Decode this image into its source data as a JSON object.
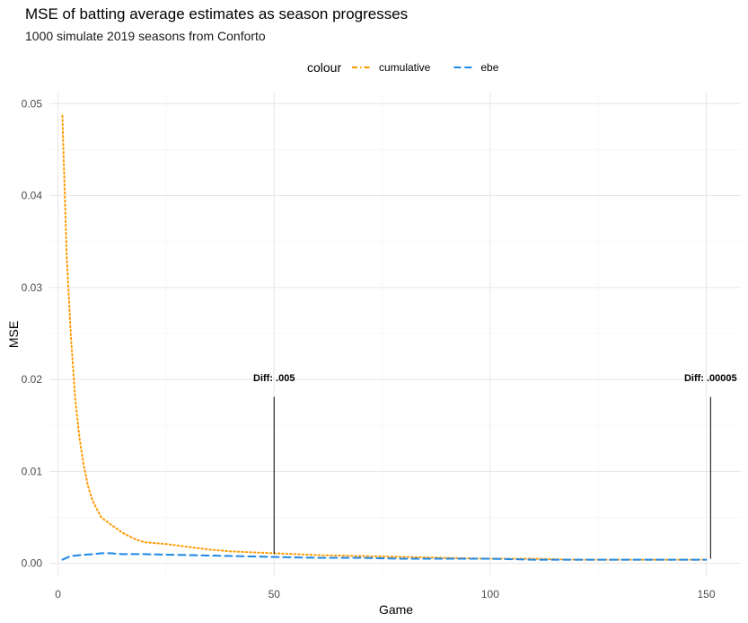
{
  "chart_data": {
    "type": "line",
    "title": "MSE of batting average estimates as season progresses",
    "subtitle": "1000 simulate 2019 seasons from Conforto",
    "xlabel": "Game",
    "ylabel": "MSE",
    "xlim": [
      -2,
      158
    ],
    "ylim": [
      -0.0015,
      0.0512
    ],
    "x_ticks": [
      0,
      50,
      100,
      150
    ],
    "y_ticks": [
      0.0,
      0.01,
      0.02,
      0.03,
      0.04,
      0.05
    ],
    "x_tick_labels": [
      "0",
      "50",
      "100",
      "150"
    ],
    "y_tick_labels": [
      "0.00",
      "0.01",
      "0.02",
      "0.03",
      "0.04",
      "0.05"
    ],
    "grid": true,
    "legend": {
      "title": "colour",
      "position": "top"
    },
    "series": [
      {
        "name": "cumulative",
        "color": "#ff9900",
        "linetype": "dotted",
        "x": [
          1,
          2,
          3,
          4,
          5,
          6,
          7,
          8,
          10,
          12,
          15,
          18,
          20,
          25,
          30,
          35,
          40,
          45,
          50,
          60,
          70,
          80,
          90,
          100,
          110,
          120,
          130,
          140,
          150
        ],
        "y": [
          0.0487,
          0.0335,
          0.0245,
          0.0178,
          0.0135,
          0.0105,
          0.0083,
          0.0068,
          0.005,
          0.0043,
          0.0033,
          0.0026,
          0.0023,
          0.0021,
          0.0018,
          0.0015,
          0.0013,
          0.0012,
          0.0011,
          0.0009,
          0.0008,
          0.0007,
          0.0006,
          0.0005,
          0.0005,
          0.0004,
          0.0004,
          0.0004,
          0.0004
        ]
      },
      {
        "name": "ebe",
        "color": "#1e88e5",
        "linetype": "dashed",
        "x": [
          1,
          3,
          5,
          8,
          10,
          12,
          15,
          20,
          30,
          40,
          50,
          60,
          70,
          80,
          90,
          100,
          110,
          120,
          130,
          140,
          150
        ],
        "y": [
          0.0004,
          0.0008,
          0.0009,
          0.001,
          0.0011,
          0.0011,
          0.001,
          0.001,
          0.0009,
          0.0008,
          0.0007,
          0.0006,
          0.0006,
          0.0005,
          0.0005,
          0.0005,
          0.0004,
          0.0004,
          0.0004,
          0.0004,
          0.0004
        ]
      }
    ],
    "annotations": [
      {
        "x": 50,
        "y_label": 0.0198,
        "y_top": 0.0181,
        "y_bottom": 0.001,
        "text": "Diff: .005"
      },
      {
        "x": 151,
        "y_label": 0.0198,
        "y_top": 0.0181,
        "y_bottom": 0.0005,
        "text": "Diff: .00005"
      }
    ]
  }
}
